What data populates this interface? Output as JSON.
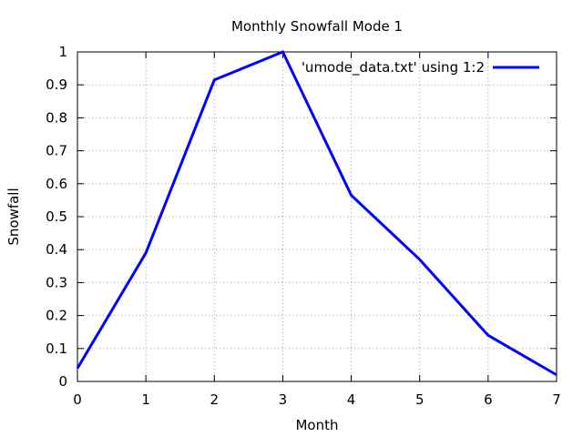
{
  "chart_data": {
    "type": "line",
    "title": "Monthly Snowfall Mode 1",
    "xlabel": "Month",
    "ylabel": "Snowfall",
    "xlim": [
      0,
      7
    ],
    "ylim": [
      0,
      1
    ],
    "x_ticks": [
      "0",
      "1",
      "2",
      "3",
      "4",
      "5",
      "6",
      "7"
    ],
    "y_ticks": [
      "0",
      "0.1",
      "0.2",
      "0.3",
      "0.4",
      "0.5",
      "0.6",
      "0.7",
      "0.8",
      "0.9",
      "1"
    ],
    "grid": true,
    "legend_position": "top-right",
    "series": [
      {
        "name": "'umode_data.txt' using 1:2",
        "color": "#0000ff",
        "x": [
          0,
          1,
          2,
          3,
          4,
          5,
          6,
          7
        ],
        "values": [
          0.04,
          0.39,
          0.915,
          1.0,
          0.565,
          0.37,
          0.14,
          0.02
        ]
      }
    ]
  }
}
